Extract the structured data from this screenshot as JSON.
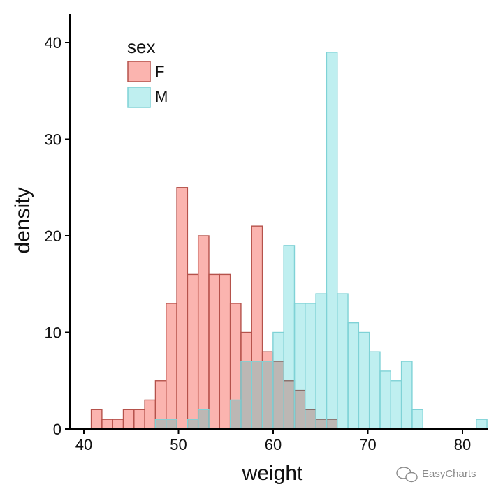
{
  "chart_data": {
    "type": "histogram",
    "xlabel": "weight",
    "ylabel": "density",
    "xlim": [
      39.5,
      83
    ],
    "ylim": [
      0,
      43
    ],
    "xticks": [
      40,
      50,
      60,
      70,
      80
    ],
    "yticks": [
      0,
      10,
      20,
      30,
      40
    ],
    "grid": false,
    "bin_width": 1.13,
    "bin_start": 40.78,
    "legend": {
      "title": "sex",
      "position": "top-left"
    },
    "series": [
      {
        "name": "F",
        "fill": "#F8766D",
        "fill_opacity": 0.55,
        "stroke": "#B5524B",
        "counts": [
          2,
          1,
          1,
          2,
          2,
          3,
          5,
          13,
          25,
          16,
          20,
          16,
          16,
          13,
          10,
          21,
          8,
          7,
          5,
          4,
          2,
          1,
          1,
          0,
          0,
          0,
          0,
          0,
          0,
          0,
          0,
          0,
          0,
          0,
          0,
          0,
          0,
          0
        ]
      },
      {
        "name": "M",
        "fill": "#00BFC4",
        "fill_opacity": 0.25,
        "stroke": "#7FD2D6",
        "counts": [
          0,
          0,
          0,
          0,
          0,
          0,
          1,
          1,
          0,
          1,
          2,
          0,
          0,
          3,
          7,
          7,
          7,
          10,
          19,
          13,
          13,
          14,
          39,
          14,
          11,
          10,
          8,
          6,
          5,
          7,
          2,
          0,
          0,
          0,
          0,
          0,
          1
        ]
      }
    ]
  },
  "watermark": {
    "text": "EasyCharts",
    "icon": "wechat-icon"
  }
}
